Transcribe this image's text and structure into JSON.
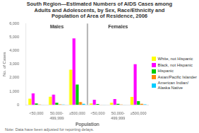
{
  "chart_data": {
    "type": "bar",
    "title": "South Region—Estimated Numbers of AIDS Cases among\nAdults and Adolescents, by Sex, Race/Ethnicity and\nPopulation of Area of Residence, 2006",
    "categories": [
      "<50,000",
      "50,000-\n499,999",
      "≥500,000",
      "<50,000",
      "50,000-\n499,999",
      "≥500,000"
    ],
    "series": [
      {
        "name": "White, not Hispanic",
        "color": "#ffff00",
        "values": [
          450,
          600,
          2600,
          100,
          150,
          580
        ]
      },
      {
        "name": "Black, not Hispanic",
        "color": "#ff00ff",
        "values": [
          850,
          750,
          4900,
          380,
          430,
          3000
        ]
      },
      {
        "name": "Hispanic",
        "color": "#00cc00",
        "values": [
          100,
          150,
          1500,
          60,
          80,
          270
        ]
      },
      {
        "name": "Asian/Pacific Islander",
        "color": "#ff8800",
        "values": [
          30,
          40,
          200,
          15,
          25,
          70
        ]
      },
      {
        "name": "American Indian/\nAlaska Native",
        "color": "#00ccff",
        "values": [
          15,
          20,
          80,
          10,
          15,
          35
        ]
      }
    ],
    "xlabel": "Population",
    "ylabel": "No. of Cases",
    "ylim": [
      0,
      6000
    ],
    "yticks": [
      0,
      {
        "value": 1000,
        "label": "1,000"
      },
      {
        "value": 2000,
        "label": "2,000"
      },
      {
        "value": 3000,
        "label": "3,000"
      },
      {
        "value": 4000,
        "label": "4,000"
      },
      {
        "value": 5000,
        "label": "5,000"
      },
      {
        "value": 6000,
        "label": "6,000"
      }
    ],
    "grid": false,
    "legend": "right",
    "annotations": [
      "Males",
      "Females"
    ],
    "note": "Note: Data have been adjusted for reporting delays."
  }
}
